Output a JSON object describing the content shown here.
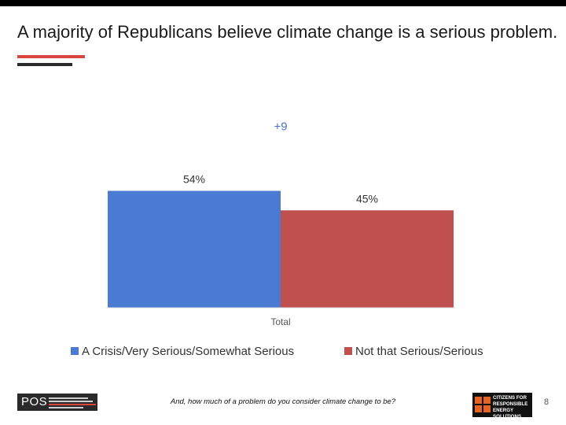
{
  "title": "A majority of Republicans believe climate change is a serious problem.",
  "chart_data": {
    "type": "bar",
    "categories": [
      "Total"
    ],
    "series": [
      {
        "name": "A Crisis/Very Serious/Somewhat Serious",
        "values": [
          54
        ],
        "label": "54%",
        "color": "#4a7bd2"
      },
      {
        "name": "Not that Serious/Serious",
        "values": [
          45
        ],
        "label": "45%",
        "color": "#c0504d"
      }
    ],
    "annotation": {
      "text": "+9",
      "color": "#4a6fd0"
    },
    "ylim": [
      0,
      100
    ],
    "legend_position": "bottom"
  },
  "footer": {
    "logo_text": "POS",
    "question": "And, how much of a problem do you consider climate change to be?",
    "partner_logo_text": "CITIZENS FOR\nRESPONSIBLE\nENERGY SOLUTIONS",
    "page_number": "8"
  }
}
